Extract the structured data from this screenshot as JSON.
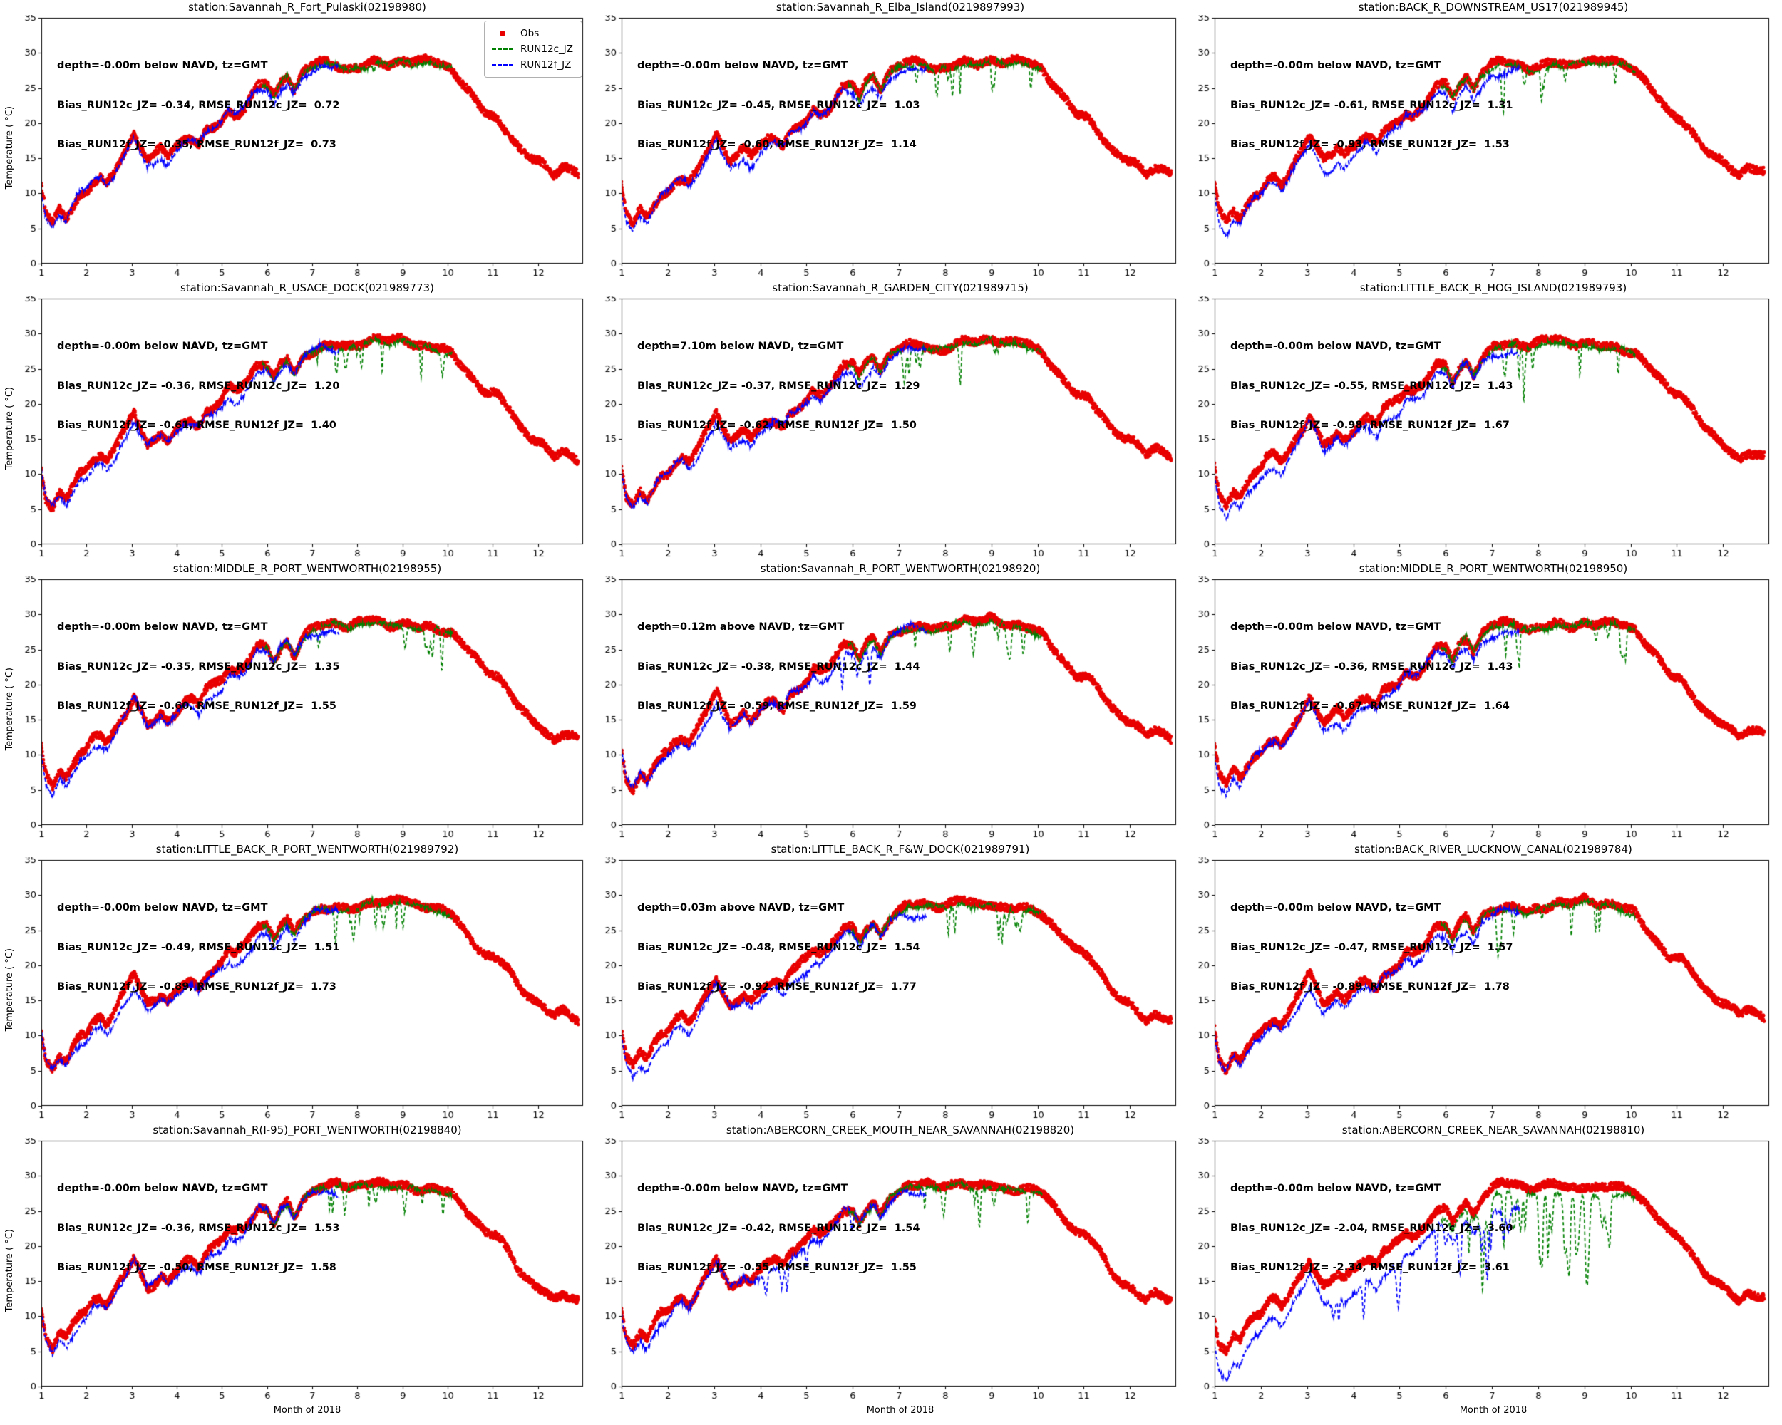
{
  "figure_title": "",
  "legend": {
    "obs_label": "Obs",
    "run12c_label": "RUN12c_JZ",
    "run12f_label": "RUN12f_JZ"
  },
  "chart_data": {
    "type": "line",
    "xlabel": "Month of 2018",
    "ylabel": "Temperature ( °C)",
    "xlim": [
      1,
      13.0
    ],
    "ylim": [
      0,
      35
    ],
    "xticks": [
      1,
      2,
      3,
      4,
      5,
      6,
      7,
      8,
      9,
      10,
      11,
      12
    ],
    "yticks": [
      0,
      5,
      10,
      15,
      20,
      25,
      30,
      35
    ],
    "grid": false,
    "legend_entries": [
      "Obs",
      "RUN12c_JZ",
      "RUN12f_JZ"
    ],
    "legend_position": "upper right, first panel only",
    "colors": {
      "obs": "#e80000",
      "run12c": "#008000",
      "run12f": "#0000ff"
    },
    "series_extents_months": {
      "Obs": [
        1.0,
        12.9
      ],
      "RUN12f_JZ": [
        1.0,
        7.6
      ],
      "RUN12c_JZ": [
        5.9,
        10.1
      ]
    },
    "obs_x": [
      1.0,
      1.1,
      1.25,
      1.4,
      1.55,
      1.7,
      1.85,
      2.0,
      2.15,
      2.3,
      2.45,
      2.6,
      2.75,
      2.9,
      3.05,
      3.2,
      3.35,
      3.5,
      3.65,
      3.8,
      4.0,
      4.15,
      4.3,
      4.5,
      4.65,
      4.8,
      5.0,
      5.15,
      5.3,
      5.5,
      5.65,
      5.8,
      6.0,
      6.15,
      6.3,
      6.45,
      6.6,
      6.8,
      7.0,
      7.2,
      7.5,
      7.8,
      8.1,
      8.4,
      8.7,
      9.0,
      9.3,
      9.6,
      9.9,
      10.1,
      10.35,
      10.6,
      10.85,
      11.1,
      11.35,
      11.6,
      11.85,
      12.1,
      12.35,
      12.55,
      12.75,
      12.9
    ],
    "obs_y": [
      11,
      7,
      5.5,
      7.5,
      6.5,
      8.5,
      10,
      10.5,
      12,
      12.5,
      11.5,
      13,
      15,
      16.5,
      18.5,
      16.5,
      14.5,
      15,
      16,
      15,
      16.5,
      17.5,
      18,
      17,
      19,
      19.5,
      20.5,
      22,
      21.5,
      22.5,
      24,
      25.5,
      25.5,
      23.5,
      25.5,
      26.5,
      24.5,
      27,
      28,
      28.5,
      28.5,
      28,
      28.5,
      29,
      28.5,
      29,
      28.5,
      28.5,
      28,
      27.5,
      25.5,
      23.5,
      21.5,
      21,
      19,
      16.5,
      15,
      14,
      12.5,
      13.5,
      13,
      12.5
    ],
    "panels": [
      {
        "title": "station:Savannah_R_Fort_Pulaski(02198980)",
        "depth_line": "depth=-0.00m below NAVD, tz=GMT",
        "biasc_line": "Bias_RUN12c_JZ= -0.34, RMSE_RUN12c_JZ=  0.72",
        "biasf_line": "Bias_RUN12f_JZ= -0.35, RMSE_RUN12f_JZ=  0.73",
        "bias_c": -0.34,
        "rmse_c": 0.72,
        "bias_f": -0.35,
        "rmse_f": 0.73,
        "green_spikes": 0,
        "blue_spikes": 0
      },
      {
        "title": "station:Savannah_R_Elba_Island(0219897993)",
        "depth_line": "depth=-0.00m below NAVD, tz=GMT",
        "biasc_line": "Bias_RUN12c_JZ= -0.45, RMSE_RUN12c_JZ=  1.03",
        "biasf_line": "Bias_RUN12f_JZ= -0.60, RMSE_RUN12f_JZ=  1.14",
        "bias_c": -0.45,
        "rmse_c": 1.03,
        "bias_f": -0.6,
        "rmse_f": 1.14,
        "green_spikes": 1,
        "blue_spikes": 0
      },
      {
        "title": "station:BACK_R_DOWNSTREAM_US17(021989945)",
        "depth_line": "depth=-0.00m below NAVD, tz=GMT",
        "biasc_line": "Bias_RUN12c_JZ= -0.61, RMSE_RUN12c_JZ=  1.31",
        "biasf_line": "Bias_RUN12f_JZ= -0.93, RMSE_RUN12f_JZ=  1.53",
        "bias_c": -0.61,
        "rmse_c": 1.31,
        "bias_f": -0.93,
        "rmse_f": 1.53,
        "green_spikes": 1,
        "blue_spikes": 0
      },
      {
        "title": "station:Savannah_R_USACE_DOCK(021989773)",
        "depth_line": "depth=-0.00m below NAVD, tz=GMT",
        "biasc_line": "Bias_RUN12c_JZ= -0.36, RMSE_RUN12c_JZ=  1.20",
        "biasf_line": "Bias_RUN12f_JZ= -0.61, RMSE_RUN12f_JZ=  1.40",
        "bias_c": -0.36,
        "rmse_c": 1.2,
        "bias_f": -0.61,
        "rmse_f": 1.4,
        "green_spikes": 1,
        "blue_spikes": 0
      },
      {
        "title": "station:Savannah_R_GARDEN_CITY(021989715)",
        "depth_line": "depth=7.10m below NAVD, tz=GMT",
        "biasc_line": "Bias_RUN12c_JZ= -0.37, RMSE_RUN12c_JZ=  1.29",
        "biasf_line": "Bias_RUN12f_JZ= -0.62, RMSE_RUN12f_JZ=  1.50",
        "bias_c": -0.37,
        "rmse_c": 1.29,
        "bias_f": -0.62,
        "rmse_f": 1.5,
        "green_spikes": 1,
        "blue_spikes": 0
      },
      {
        "title": "station:LITTLE_BACK_R_HOG_ISLAND(021989793)",
        "depth_line": "depth=-0.00m below NAVD, tz=GMT",
        "biasc_line": "Bias_RUN12c_JZ= -0.55, RMSE_RUN12c_JZ=  1.43",
        "biasf_line": "Bias_RUN12f_JZ= -0.98, RMSE_RUN12f_JZ=  1.67",
        "bias_c": -0.55,
        "rmse_c": 1.43,
        "bias_f": -0.98,
        "rmse_f": 1.67,
        "green_spikes": 1,
        "blue_spikes": 0
      },
      {
        "title": "station:MIDDLE_R_PORT_WENTWORTH(02198955)",
        "depth_line": "depth=-0.00m below NAVD, tz=GMT",
        "biasc_line": "Bias_RUN12c_JZ= -0.35, RMSE_RUN12c_JZ=  1.35",
        "biasf_line": "Bias_RUN12f_JZ= -0.60, RMSE_RUN12f_JZ=  1.55",
        "bias_c": -0.35,
        "rmse_c": 1.35,
        "bias_f": -0.6,
        "rmse_f": 1.55,
        "green_spikes": 1,
        "blue_spikes": 0
      },
      {
        "title": "station:Savannah_R_PORT_WENTWORTH(02198920)",
        "depth_line": "depth=0.12m above NAVD, tz=GMT",
        "biasc_line": "Bias_RUN12c_JZ= -0.38, RMSE_RUN12c_JZ=  1.44",
        "biasf_line": "Bias_RUN12f_JZ= -0.59, RMSE_RUN12f_JZ=  1.59",
        "bias_c": -0.38,
        "rmse_c": 1.44,
        "bias_f": -0.59,
        "rmse_f": 1.59,
        "green_spikes": 1,
        "blue_spikes": 1
      },
      {
        "title": "station:MIDDLE_R_PORT_WENTWORTH(02198950)",
        "depth_line": "depth=-0.00m below NAVD, tz=GMT",
        "biasc_line": "Bias_RUN12c_JZ= -0.36, RMSE_RUN12c_JZ=  1.43",
        "biasf_line": "Bias_RUN12f_JZ= -0.67, RMSE_RUN12f_JZ=  1.64",
        "bias_c": -0.36,
        "rmse_c": 1.43,
        "bias_f": -0.67,
        "rmse_f": 1.64,
        "green_spikes": 1,
        "blue_spikes": 0
      },
      {
        "title": "station:LITTLE_BACK_R_PORT_WENTWORTH(021989792)",
        "depth_line": "depth=-0.00m below NAVD, tz=GMT",
        "biasc_line": "Bias_RUN12c_JZ= -0.49, RMSE_RUN12c_JZ=  1.51",
        "biasf_line": "Bias_RUN12f_JZ= -0.89, RMSE_RUN12f_JZ=  1.73",
        "bias_c": -0.49,
        "rmse_c": 1.51,
        "bias_f": -0.89,
        "rmse_f": 1.73,
        "green_spikes": 1,
        "blue_spikes": 0
      },
      {
        "title": "station:LITTLE_BACK_R_F&W_DOCK(021989791)",
        "depth_line": "depth=0.03m above NAVD, tz=GMT",
        "biasc_line": "Bias_RUN12c_JZ= -0.48, RMSE_RUN12c_JZ=  1.54",
        "biasf_line": "Bias_RUN12f_JZ= -0.92, RMSE_RUN12f_JZ=  1.77",
        "bias_c": -0.48,
        "rmse_c": 1.54,
        "bias_f": -0.92,
        "rmse_f": 1.77,
        "green_spikes": 1,
        "blue_spikes": 0
      },
      {
        "title": "station:BACK_RIVER_LUCKNOW_CANAL(021989784)",
        "depth_line": "depth=-0.00m below NAVD, tz=GMT",
        "biasc_line": "Bias_RUN12c_JZ= -0.47, RMSE_RUN12c_JZ=  1.57",
        "biasf_line": "Bias_RUN12f_JZ= -0.89, RMSE_RUN12f_JZ=  1.78",
        "bias_c": -0.47,
        "rmse_c": 1.57,
        "bias_f": -0.89,
        "rmse_f": 1.78,
        "green_spikes": 1,
        "blue_spikes": 0
      },
      {
        "title": "station:Savannah_R(I-95)_PORT_WENTWORTH(02198840)",
        "depth_line": "depth=-0.00m below NAVD, tz=GMT",
        "biasc_line": "Bias_RUN12c_JZ= -0.36, RMSE_RUN12c_JZ=  1.53",
        "biasf_line": "Bias_RUN12f_JZ= -0.50, RMSE_RUN12f_JZ=  1.58",
        "bias_c": -0.36,
        "rmse_c": 1.53,
        "bias_f": -0.5,
        "rmse_f": 1.58,
        "green_spikes": 1,
        "blue_spikes": 0
      },
      {
        "title": "station:ABERCORN_CREEK_MOUTH_NEAR_SAVANNAH(02198820)",
        "depth_line": "depth=-0.00m below NAVD, tz=GMT",
        "biasc_line": "Bias_RUN12c_JZ= -0.42, RMSE_RUN12c_JZ=  1.54",
        "biasf_line": "Bias_RUN12f_JZ= -0.55, RMSE_RUN12f_JZ=  1.55",
        "bias_c": -0.42,
        "rmse_c": 1.54,
        "bias_f": -0.55,
        "rmse_f": 1.55,
        "green_spikes": 1,
        "blue_spikes": 1
      },
      {
        "title": "station:ABERCORN_CREEK_NEAR_SAVANNAH(02198810)",
        "depth_line": "depth=-0.00m below NAVD, tz=GMT",
        "biasc_line": "Bias_RUN12c_JZ= -2.04, RMSE_RUN12c_JZ=  3.60",
        "biasf_line": "Bias_RUN12f_JZ= -2.34, RMSE_RUN12f_JZ=  3.61",
        "bias_c": -2.04,
        "rmse_c": 3.6,
        "bias_f": -2.34,
        "rmse_f": 3.61,
        "green_spikes": 2,
        "blue_spikes": 2
      }
    ]
  }
}
